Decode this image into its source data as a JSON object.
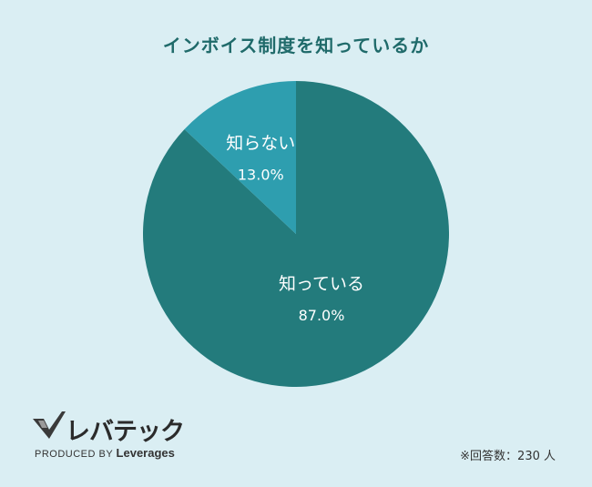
{
  "chart_data": {
    "type": "pie",
    "title": "インボイス制度を知っているか",
    "categories": [
      "知っている",
      "知らない"
    ],
    "values": [
      87.0,
      13.0
    ],
    "value_labels": [
      "87.0%",
      "13.0%"
    ],
    "colors": [
      "#237b7c",
      "#2e9eaf"
    ],
    "label_color": "#ffffff"
  },
  "branding": {
    "logo_text": "レバテック",
    "produced_by_prefix": "PRODUCED BY ",
    "produced_by_brand": "Leverages"
  },
  "footnote": "※回答数：230 人"
}
